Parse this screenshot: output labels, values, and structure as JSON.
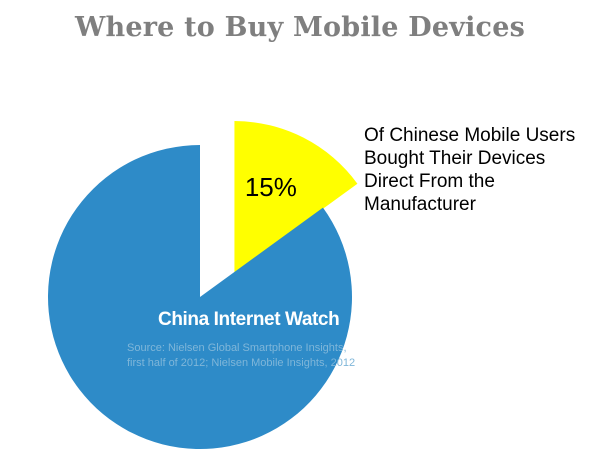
{
  "page": {
    "title": "Where to Buy Mobile Devices",
    "annotation_lines": [
      "Of Chinese Mobile  Users",
      " Bought Their Devices",
      "Direct From the",
      "Manufacturer"
    ],
    "watermark": "China Internet Watch",
    "source_lines": [
      "Source: Nielsen Global Smartphone Insights,",
      "first half of 2012;  Nielsen Mobile Insights, 2012"
    ]
  },
  "chart_data": {
    "type": "pie",
    "title": "Where to Buy Mobile Devices",
    "slices": [
      {
        "value": 15,
        "label": "15%",
        "color": "#ffff00",
        "exploded": true
      },
      {
        "value": 85,
        "label": "",
        "color": "#2e8bc8",
        "exploded": false
      }
    ],
    "start": "top, clockwise",
    "legend": "none"
  }
}
